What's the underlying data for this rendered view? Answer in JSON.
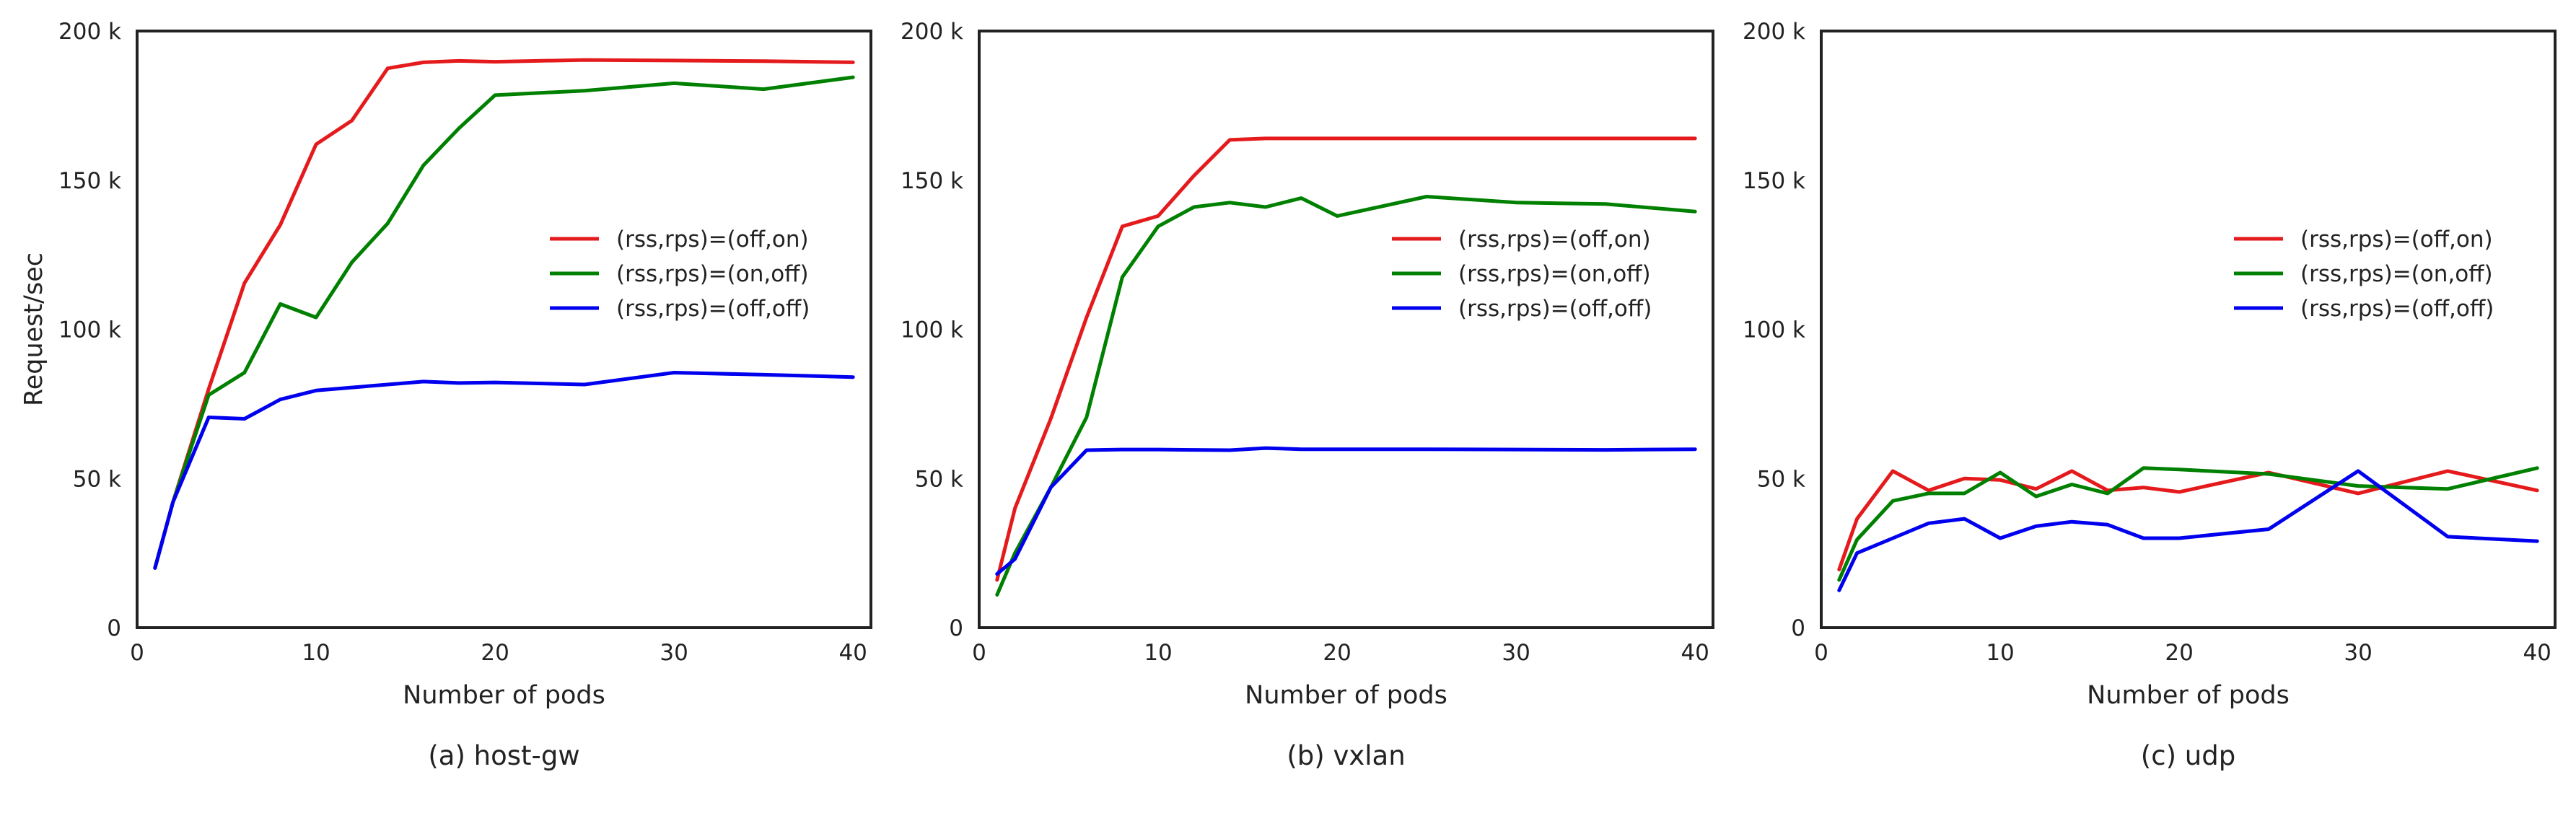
{
  "figure": {
    "panels": [
      "(a) host-gw",
      "(b) vxlan",
      "(c) udp"
    ]
  },
  "chart_data": [
    {
      "type": "line",
      "caption": "(a) host-gw",
      "xlabel": "Number of pods",
      "ylabel": "Request/sec",
      "xlim": [
        0,
        41
      ],
      "ylim": [
        0,
        200000
      ],
      "xticks": [
        0,
        10,
        20,
        30,
        40
      ],
      "xtick_labels": [
        "0",
        "10",
        "20",
        "30",
        "40"
      ],
      "yticks": [
        0,
        50000,
        100000,
        150000,
        200000
      ],
      "ytick_labels": [
        "0",
        "50 k",
        "100 k",
        "150 k",
        "200 k"
      ],
      "grid": false,
      "legend_position": "center-right",
      "series": [
        {
          "name": "(rss,rps)=(off,on)",
          "color": "#e41a1c",
          "x": [
            1,
            2,
            4,
            6,
            8,
            10,
            12,
            14,
            16,
            18,
            20,
            25,
            30,
            35,
            40
          ],
          "y": [
            20000,
            42000,
            80000,
            115500,
            135000,
            162000,
            170000,
            187500,
            189500,
            190000,
            189700,
            190300,
            190100,
            189900,
            189500
          ]
        },
        {
          "name": "(rss,rps)=(on,off)",
          "color": "#008000",
          "x": [
            1,
            2,
            4,
            6,
            8,
            10,
            12,
            14,
            16,
            18,
            20,
            25,
            30,
            35,
            40
          ],
          "y": [
            20000,
            42000,
            78000,
            85500,
            108500,
            104000,
            122500,
            135500,
            155000,
            167500,
            178500,
            180000,
            182500,
            180500,
            184500
          ]
        },
        {
          "name": "(rss,rps)=(off,off)",
          "color": "#0000ee",
          "x": [
            1,
            2,
            4,
            6,
            8,
            10,
            12,
            14,
            16,
            18,
            20,
            25,
            30,
            35,
            40
          ],
          "y": [
            20000,
            42000,
            70500,
            70000,
            76500,
            79500,
            80500,
            81500,
            82500,
            82000,
            82200,
            81500,
            85500,
            84800,
            84000
          ]
        }
      ]
    },
    {
      "type": "line",
      "caption": "(b) vxlan",
      "xlabel": "Number of pods",
      "ylabel": "",
      "xlim": [
        0,
        41
      ],
      "ylim": [
        0,
        200000
      ],
      "xticks": [
        0,
        10,
        20,
        30,
        40
      ],
      "xtick_labels": [
        "0",
        "10",
        "20",
        "30",
        "40"
      ],
      "yticks": [
        0,
        50000,
        100000,
        150000,
        200000
      ],
      "ytick_labels": [
        "0",
        "50 k",
        "100 k",
        "150 k",
        "200 k"
      ],
      "grid": false,
      "legend_position": "center-right",
      "series": [
        {
          "name": "(rss,rps)=(off,on)",
          "color": "#e41a1c",
          "x": [
            1,
            2,
            4,
            6,
            8,
            10,
            12,
            14,
            16,
            18,
            20,
            25,
            30,
            35,
            40
          ],
          "y": [
            16000,
            40000,
            70000,
            104000,
            134500,
            138000,
            151500,
            163500,
            164000,
            164000,
            164000,
            164000,
            164000,
            164000,
            164000
          ]
        },
        {
          "name": "(rss,rps)=(on,off)",
          "color": "#008000",
          "x": [
            1,
            2,
            4,
            6,
            8,
            10,
            12,
            14,
            16,
            18,
            20,
            25,
            30,
            35,
            40
          ],
          "y": [
            11000,
            25000,
            47000,
            70500,
            117500,
            134500,
            141000,
            142500,
            141000,
            144000,
            138000,
            144500,
            142500,
            142000,
            139500
          ]
        },
        {
          "name": "(rss,rps)=(off,off)",
          "color": "#0000ee",
          "x": [
            1,
            2,
            4,
            6,
            8,
            10,
            12,
            14,
            16,
            18,
            20,
            25,
            30,
            35,
            40
          ],
          "y": [
            18000,
            23000,
            47000,
            59500,
            59700,
            59700,
            59600,
            59500,
            60200,
            59800,
            59800,
            59800,
            59700,
            59600,
            59800
          ]
        }
      ]
    },
    {
      "type": "line",
      "caption": "(c) udp",
      "xlabel": "Number of pods",
      "ylabel": "",
      "xlim": [
        0,
        41
      ],
      "ylim": [
        0,
        200000
      ],
      "xticks": [
        0,
        10,
        20,
        30,
        40
      ],
      "xtick_labels": [
        "0",
        "10",
        "20",
        "30",
        "40"
      ],
      "yticks": [
        0,
        50000,
        100000,
        150000,
        200000
      ],
      "ytick_labels": [
        "0",
        "50 k",
        "100 k",
        "150 k",
        "200 k"
      ],
      "grid": false,
      "legend_position": "center-right",
      "series": [
        {
          "name": "(rss,rps)=(off,on)",
          "color": "#e41a1c",
          "x": [
            1,
            2,
            4,
            6,
            8,
            10,
            12,
            14,
            16,
            18,
            20,
            25,
            30,
            35,
            40
          ],
          "y": [
            19500,
            36500,
            52500,
            46000,
            50000,
            49500,
            46500,
            52500,
            46000,
            47000,
            45500,
            52000,
            45000,
            52500,
            46000
          ]
        },
        {
          "name": "(rss,rps)=(on,off)",
          "color": "#008000",
          "x": [
            1,
            2,
            4,
            6,
            8,
            10,
            12,
            14,
            16,
            18,
            20,
            25,
            30,
            35,
            40
          ],
          "y": [
            16000,
            29500,
            42500,
            45000,
            45000,
            52000,
            44000,
            48000,
            45000,
            53500,
            53000,
            51500,
            47500,
            46500,
            53500
          ]
        },
        {
          "name": "(rss,rps)=(off,off)",
          "color": "#0000ee",
          "x": [
            1,
            2,
            4,
            6,
            8,
            10,
            12,
            14,
            16,
            18,
            20,
            25,
            30,
            35,
            40
          ],
          "y": [
            12500,
            25000,
            30000,
            35000,
            36500,
            30000,
            34000,
            35500,
            34500,
            30000,
            30000,
            33000,
            52500,
            30500,
            29000
          ]
        }
      ]
    }
  ]
}
